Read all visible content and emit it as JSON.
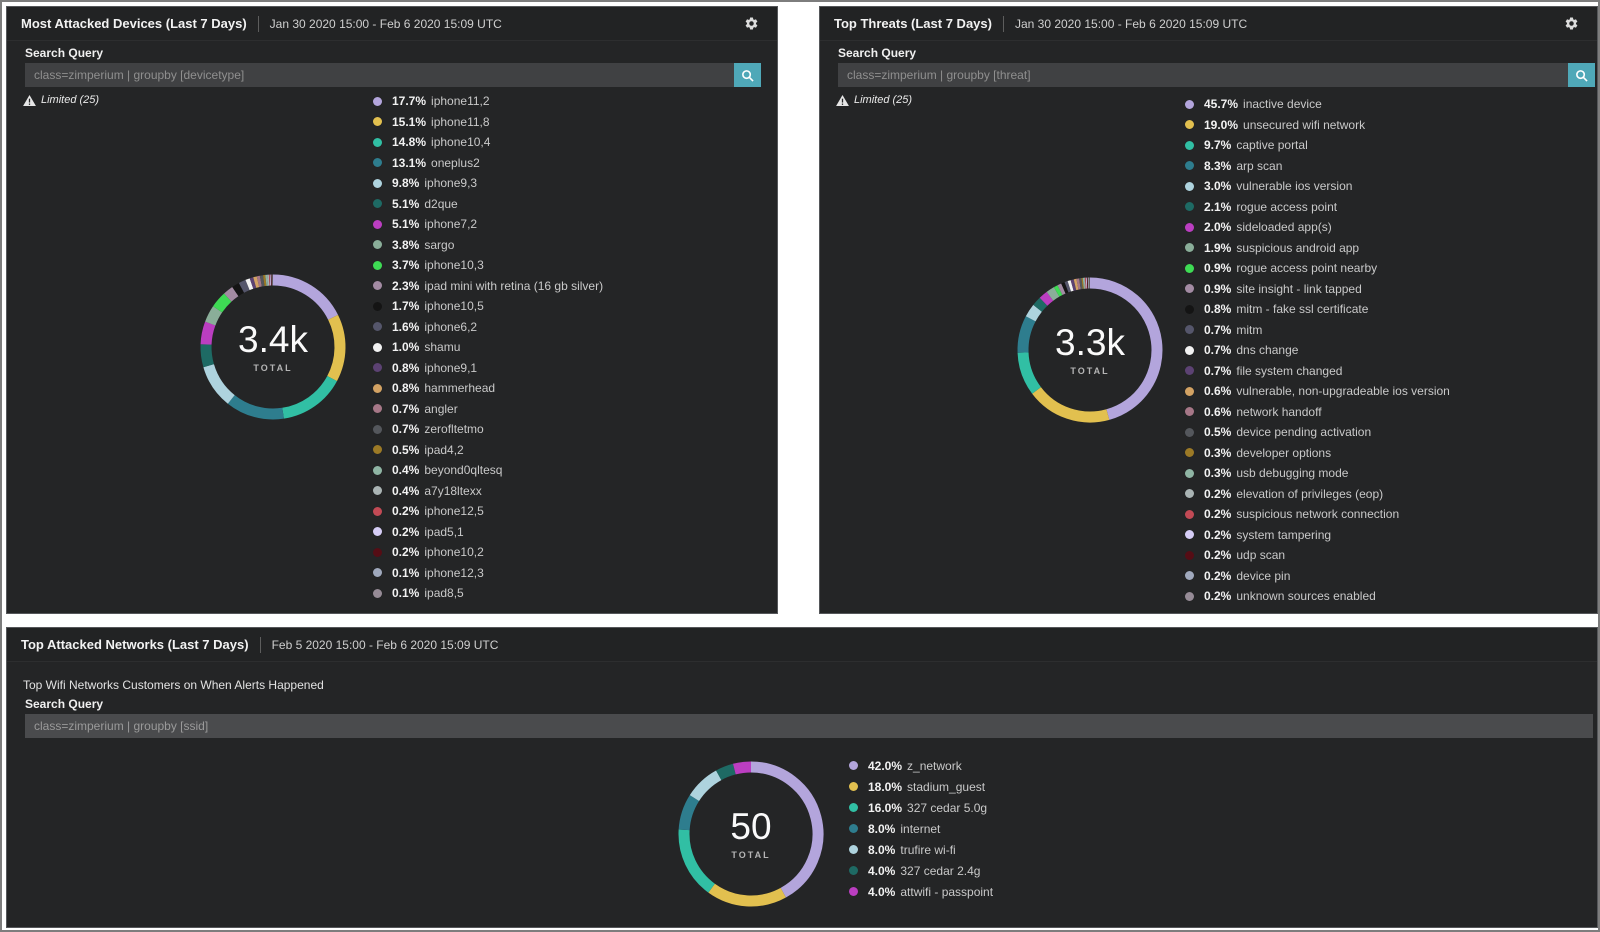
{
  "colors": {
    "panel_background": "#242526",
    "search_button": "#4fa8b8",
    "legend_label": "#c9c9c9",
    "title_text": "#f2f2f2"
  },
  "icons": {
    "header_action": "gear-icon",
    "search_submit": "search-icon",
    "limited_flag": "warning-triangle-icon"
  },
  "palette": [
    "#b3a5dc",
    "#e2c04f",
    "#31bfa4",
    "#2e7d8e",
    "#aed3de",
    "#1e6a64",
    "#bb3ec1",
    "#8aae99",
    "#3edb54",
    "#a38ba3",
    "#141414",
    "#55566b",
    "#f2f2f2",
    "#5c4273",
    "#d3a263",
    "#a67787",
    "#54575c",
    "#9c7a26",
    "#8fb5a4",
    "#aab4b4",
    "#c24a55",
    "#d6cdf6",
    "#550d15",
    "#a0a9bd",
    "#968b96"
  ],
  "panels": [
    {
      "title": "Most Attacked Devices (Last 7 Days)",
      "date_range": "Jan 30 2020 15:00 - Feb 6 2020 15:09 UTC",
      "search_label": "Search Query",
      "search_query": "class=zimperium | groupby [devicetype]",
      "limited": "Limited (25)"
    },
    {
      "title": "Top Threats (Last 7 Days)",
      "date_range": "Jan 30 2020 15:00 - Feb 6 2020 15:09 UTC",
      "search_label": "Search Query",
      "search_query": "class=zimperium | groupby [threat]",
      "limited": "Limited (25)"
    },
    {
      "title": "Top Attacked Networks (Last 7 Days)",
      "date_range": "Feb 5 2020 15:00 - Feb 6 2020 15:09 UTC",
      "subtitle": "Top Wifi Networks Customers on When Alerts Happened",
      "search_label": "Search Query",
      "search_query": "class=zimperium | groupby [ssid]"
    }
  ],
  "chart_data": [
    {
      "type": "donut",
      "title": "Most Attacked Devices (Last 7 Days)",
      "total": "3.4k",
      "total_label": "TOTAL",
      "legend_position": "right",
      "labels": [
        "iphone11,2",
        "iphone11,8",
        "iphone10,4",
        "oneplus2",
        "iphone9,3",
        "d2que",
        "iphone7,2",
        "sargo",
        "iphone10,3",
        "ipad mini with retina (16 gb silver)",
        "iphone10,5",
        "iphone6,2",
        "shamu",
        "iphone9,1",
        "hammerhead",
        "angler",
        "zerofltetmo",
        "ipad4,2",
        "beyond0qltesq",
        "a7y18ltexx",
        "iphone12,5",
        "ipad5,1",
        "iphone10,2",
        "iphone12,3",
        "ipad8,5"
      ],
      "values": [
        17.7,
        15.1,
        14.8,
        13.1,
        9.8,
        5.1,
        5.1,
        3.8,
        3.7,
        2.3,
        1.7,
        1.6,
        1.0,
        0.8,
        0.8,
        0.7,
        0.7,
        0.5,
        0.4,
        0.4,
        0.2,
        0.2,
        0.2,
        0.1,
        0.1
      ]
    },
    {
      "type": "donut",
      "title": "Top Threats (Last 7 Days)",
      "total": "3.3k",
      "total_label": "TOTAL",
      "legend_position": "right",
      "labels": [
        "inactive device",
        "unsecured wifi network",
        "captive portal",
        "arp scan",
        "vulnerable ios version",
        "rogue access point",
        "sideloaded app(s)",
        "suspicious android app",
        "rogue access point nearby",
        "site insight - link tapped",
        "mitm - fake ssl certificate",
        "mitm",
        "dns change",
        "file system changed",
        "vulnerable, non-upgradeable ios version",
        "network handoff",
        "device pending activation",
        "developer options",
        "usb debugging mode",
        "elevation of privileges (eop)",
        "suspicious network connection",
        "system tampering",
        "udp scan",
        "device pin",
        "unknown sources enabled"
      ],
      "values": [
        45.7,
        19.0,
        9.7,
        8.3,
        3.0,
        2.1,
        2.0,
        1.9,
        0.9,
        0.9,
        0.8,
        0.7,
        0.7,
        0.7,
        0.6,
        0.6,
        0.5,
        0.3,
        0.3,
        0.2,
        0.2,
        0.2,
        0.2,
        0.2,
        0.2
      ]
    },
    {
      "type": "donut",
      "title": "Top Attacked Networks (Last 7 Days)",
      "total": "50",
      "total_label": "TOTAL",
      "legend_position": "right",
      "labels": [
        "z_network",
        "stadium_guest",
        "327 cedar 5.0g",
        "internet",
        "trufire wi-fi",
        "327 cedar 2.4g",
        "attwifi - passpoint"
      ],
      "values": [
        42.0,
        18.0,
        16.0,
        8.0,
        8.0,
        4.0,
        4.0
      ]
    }
  ]
}
